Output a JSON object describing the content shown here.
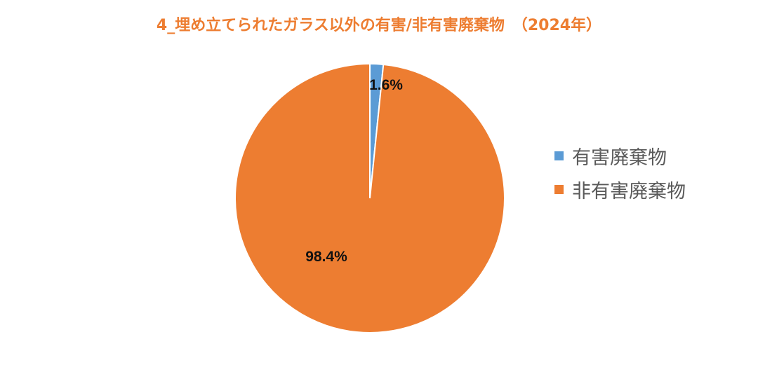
{
  "chart_data": {
    "type": "pie",
    "title": "4_埋め立てられたガラス以外の有害/非有害廃棄物　（2024年）",
    "slices": [
      {
        "name": "有害廃棄物",
        "value": 1.6,
        "label": "1.6%",
        "color": "#5B9BD5"
      },
      {
        "name": "非有害廃棄物",
        "value": 98.4,
        "label": "98.4%",
        "color": "#ED7D31"
      }
    ],
    "legend_position": "right"
  }
}
